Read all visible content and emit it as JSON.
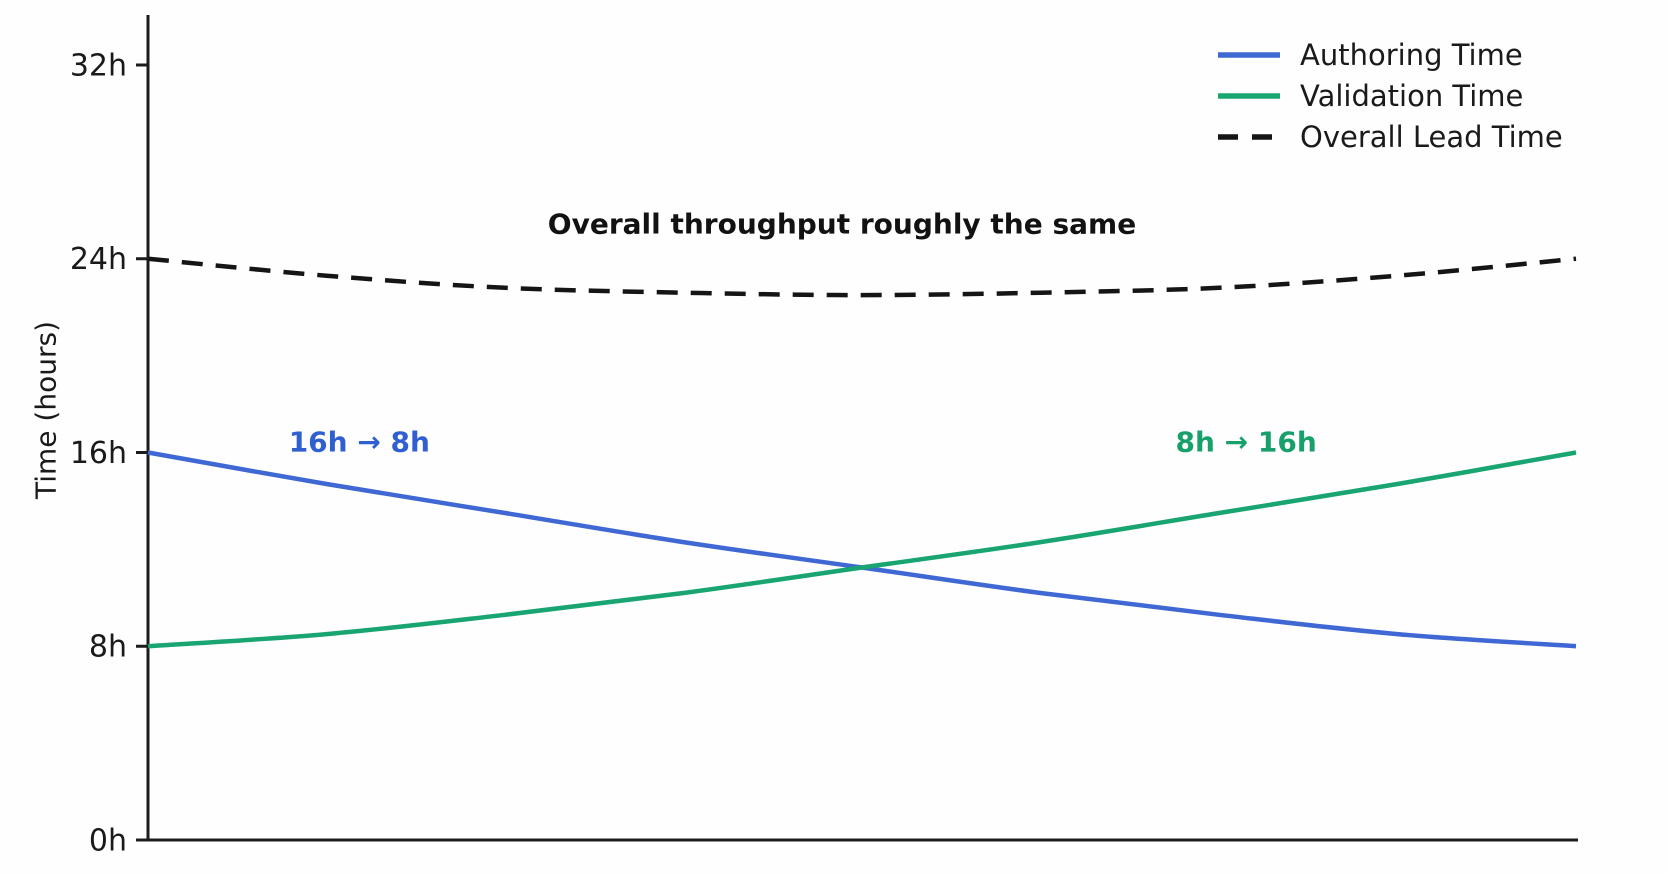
{
  "chart_data": {
    "type": "line",
    "title": "",
    "xlabel": "",
    "ylabel": "Time (hours)",
    "x_range": [
      0,
      1
    ],
    "x_ticks": [],
    "y_range_hours": [
      0,
      34
    ],
    "yticks": [
      {
        "value": 0,
        "label": "0h"
      },
      {
        "value": 8,
        "label": "8h"
      },
      {
        "value": 16,
        "label": "16h"
      },
      {
        "value": 24,
        "label": "24h"
      },
      {
        "value": 32,
        "label": "32h"
      }
    ],
    "x": [
      0,
      0.125,
      0.25,
      0.375,
      0.5,
      0.625,
      0.75,
      0.875,
      1
    ],
    "series": [
      {
        "name": "Authoring Time",
        "color": "#3f68d4",
        "dash": false,
        "values": [
          16,
          14.7,
          13.5,
          12.3,
          11.25,
          10.2,
          9.3,
          8.5,
          8
        ]
      },
      {
        "name": "Validation Time",
        "color": "#19a571",
        "dash": false,
        "values": [
          8,
          8.5,
          9.3,
          10.2,
          11.25,
          12.3,
          13.5,
          14.7,
          16
        ]
      },
      {
        "name": "Overall Lead Time",
        "color": "#151515",
        "dash": true,
        "values": [
          24,
          23.3,
          22.8,
          22.6,
          22.5,
          22.6,
          22.8,
          23.3,
          24
        ]
      }
    ],
    "legend": {
      "position": "top-right",
      "frame": false,
      "items": [
        "Authoring Time",
        "Validation Time",
        "Overall Lead Time"
      ]
    },
    "annotations": [
      {
        "text": "16h → 8h",
        "color": "#3060cf",
        "t": 0.148,
        "hours": 16.45
      },
      {
        "text": "8h → 16h",
        "color": "#18a06b",
        "t": 0.769,
        "hours": 16.45
      },
      {
        "text": "Overall throughput roughly the same",
        "color": "#121212",
        "t": 0.486,
        "hours": 25.45
      }
    ]
  }
}
